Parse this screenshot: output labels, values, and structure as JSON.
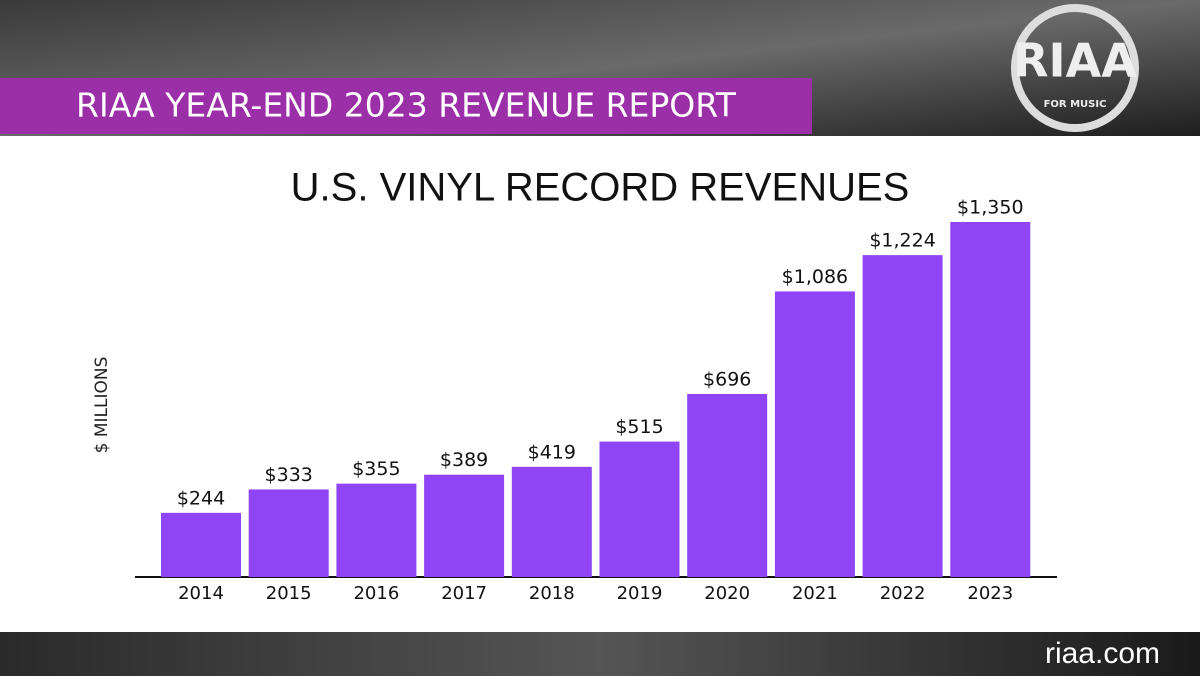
{
  "chart_data": {
    "type": "bar",
    "title": "U.S. VINYL RECORD REVENUES",
    "y_label": "$ MILLIONS",
    "categories": [
      "2014",
      "2015",
      "2016",
      "2017",
      "2018",
      "2019",
      "2020",
      "2021",
      "2022",
      "2023"
    ],
    "values": [
      244,
      333,
      355,
      389,
      419,
      515,
      696,
      1086,
      1224,
      1350
    ],
    "value_labels": [
      "$244",
      "$333",
      "$355",
      "$389",
      "$419",
      "$515",
      "$696",
      "$1,086",
      "$1,224",
      "$1,350"
    ],
    "color": "#8f45f5"
  },
  "banner": "RIAA YEAR-END 2023 REVENUE REPORT",
  "logo": {
    "text": "RIAA",
    "tagline": "FOR MUSIC"
  },
  "footer": "riaa.com"
}
